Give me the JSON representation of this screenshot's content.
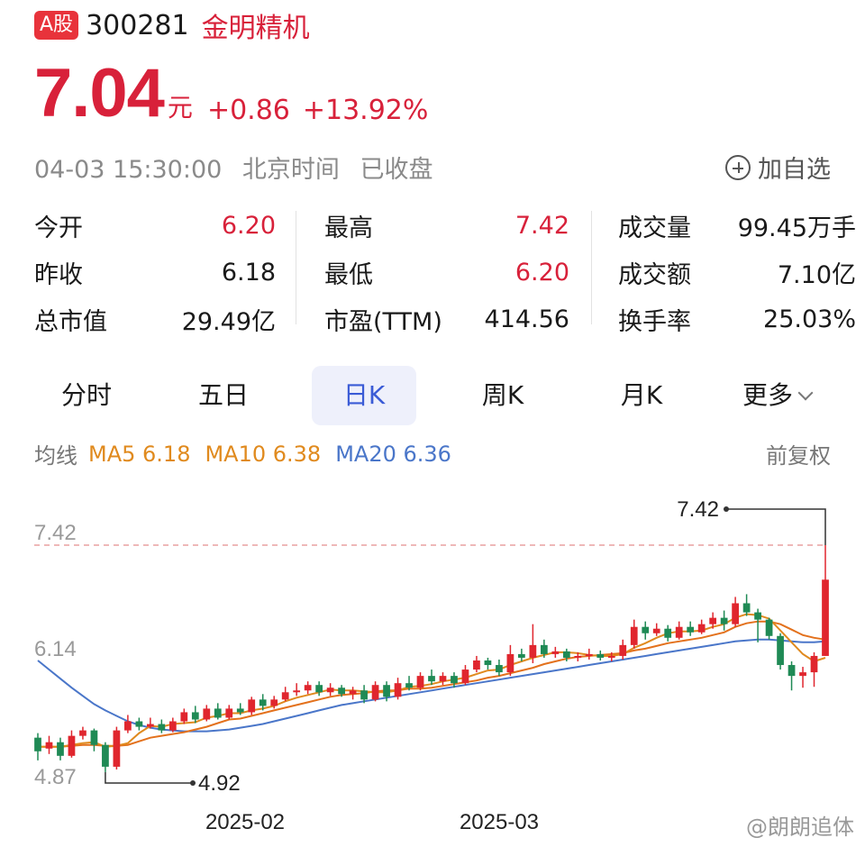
{
  "header": {
    "market_badge": "A股",
    "code": "300281",
    "name": "金明精机"
  },
  "quote": {
    "price": "7.04",
    "unit": "元",
    "change": "+0.86",
    "change_pct": "+13.92%"
  },
  "status": {
    "datetime": "04-03 15:30:00",
    "timezone": "北京时间",
    "state": "已收盘",
    "watch_label": "加自选"
  },
  "stats": {
    "col1": [
      {
        "label": "今开",
        "value": "6.20",
        "color": "red"
      },
      {
        "label": "昨收",
        "value": "6.18",
        "color": "black"
      },
      {
        "label": "总市值",
        "value": "29.49亿",
        "color": "black"
      }
    ],
    "col2": [
      {
        "label": "最高",
        "value": "7.42",
        "color": "red"
      },
      {
        "label": "最低",
        "value": "6.20",
        "color": "red"
      },
      {
        "label": "市盈(TTM)",
        "value": "414.56",
        "color": "black"
      }
    ],
    "col3": [
      {
        "label": "成交量",
        "value": "99.45万手",
        "color": "black"
      },
      {
        "label": "成交额",
        "value": "7.10亿",
        "color": "black"
      },
      {
        "label": "换手率",
        "value": "25.03%",
        "color": "black"
      }
    ]
  },
  "tabs": [
    "分时",
    "五日",
    "日K",
    "周K",
    "月K",
    "更多"
  ],
  "active_tab": "日K",
  "ma": {
    "label": "均线",
    "ma5": "MA5 6.18",
    "ma10": "MA10 6.38",
    "ma20": "MA20 6.36",
    "adjust": "前复权"
  },
  "chart_data": {
    "type": "candlestick",
    "y_ticks": [
      "7.42",
      "6.14",
      "4.87"
    ],
    "y_range": [
      4.87,
      7.42
    ],
    "x_ticks": [
      "2025-02",
      "2025-03"
    ],
    "high_marker": "7.42",
    "low_marker": "4.92",
    "dashed_line_value": 7.42,
    "colors": {
      "up": "#e0262e",
      "down": "#1f8a55",
      "ma5": "#e08a1e",
      "ma10": "#e3711c",
      "ma20": "#4a76c9"
    },
    "candles": [
      [
        5.3,
        5.15,
        5.35,
        5.05
      ],
      [
        5.18,
        5.25,
        5.32,
        5.12
      ],
      [
        5.25,
        5.1,
        5.3,
        5.05
      ],
      [
        5.1,
        5.32,
        5.38,
        5.08
      ],
      [
        5.32,
        5.38,
        5.42,
        5.28
      ],
      [
        5.38,
        5.22,
        5.4,
        5.15
      ],
      [
        5.22,
        4.98,
        5.25,
        4.92
      ],
      [
        4.98,
        5.38,
        5.42,
        4.95
      ],
      [
        5.38,
        5.48,
        5.55,
        5.35
      ],
      [
        5.48,
        5.42,
        5.52,
        5.38
      ],
      [
        5.42,
        5.45,
        5.52,
        5.4
      ],
      [
        5.45,
        5.38,
        5.5,
        5.35
      ],
      [
        5.38,
        5.48,
        5.52,
        5.36
      ],
      [
        5.48,
        5.58,
        5.62,
        5.45
      ],
      [
        5.58,
        5.5,
        5.65,
        5.46
      ],
      [
        5.5,
        5.62,
        5.66,
        5.48
      ],
      [
        5.62,
        5.52,
        5.68,
        5.5
      ],
      [
        5.52,
        5.62,
        5.66,
        5.5
      ],
      [
        5.62,
        5.58,
        5.68,
        5.55
      ],
      [
        5.58,
        5.72,
        5.75,
        5.55
      ],
      [
        5.72,
        5.65,
        5.78,
        5.6
      ],
      [
        5.65,
        5.72,
        5.76,
        5.62
      ],
      [
        5.72,
        5.8,
        5.86,
        5.7
      ],
      [
        5.8,
        5.82,
        5.9,
        5.76
      ],
      [
        5.82,
        5.88,
        5.92,
        5.78
      ],
      [
        5.88,
        5.8,
        5.92,
        5.76
      ],
      [
        5.8,
        5.85,
        5.9,
        5.76
      ],
      [
        5.85,
        5.78,
        5.88,
        5.75
      ],
      [
        5.78,
        5.82,
        5.86,
        5.72
      ],
      [
        5.82,
        5.72,
        5.88,
        5.68
      ],
      [
        5.72,
        5.88,
        5.92,
        5.7
      ],
      [
        5.88,
        5.75,
        5.92,
        5.7
      ],
      [
        5.75,
        5.9,
        5.96,
        5.72
      ],
      [
        5.9,
        5.85,
        5.98,
        5.82
      ],
      [
        5.85,
        5.98,
        6.02,
        5.82
      ],
      [
        5.98,
        5.92,
        6.05,
        5.88
      ],
      [
        5.92,
        5.98,
        6.02,
        5.88
      ],
      [
        5.98,
        5.9,
        6.02,
        5.85
      ],
      [
        5.9,
        6.05,
        6.1,
        5.88
      ],
      [
        6.05,
        6.15,
        6.2,
        6.02
      ],
      [
        6.15,
        6.1,
        6.18,
        6.05
      ],
      [
        6.1,
        6.02,
        6.16,
        5.98
      ],
      [
        6.02,
        6.22,
        6.32,
        5.98
      ],
      [
        6.22,
        6.18,
        6.28,
        6.14
      ],
      [
        6.18,
        6.32,
        6.55,
        6.12
      ],
      [
        6.32,
        6.22,
        6.38,
        6.18
      ],
      [
        6.22,
        6.25,
        6.3,
        6.18
      ],
      [
        6.25,
        6.18,
        6.28,
        6.14
      ],
      [
        6.18,
        6.2,
        6.24,
        6.14
      ],
      [
        6.2,
        6.22,
        6.28,
        6.16
      ],
      [
        6.22,
        6.18,
        6.26,
        6.15
      ],
      [
        6.18,
        6.2,
        6.24,
        6.14
      ],
      [
        6.2,
        6.32,
        6.38,
        6.16
      ],
      [
        6.32,
        6.52,
        6.6,
        6.28
      ],
      [
        6.52,
        6.45,
        6.58,
        6.38
      ],
      [
        6.45,
        6.5,
        6.56,
        6.42
      ],
      [
        6.5,
        6.4,
        6.54,
        6.36
      ],
      [
        6.4,
        6.52,
        6.58,
        6.38
      ],
      [
        6.52,
        6.46,
        6.58,
        6.42
      ],
      [
        6.46,
        6.55,
        6.6,
        6.44
      ],
      [
        6.55,
        6.62,
        6.68,
        6.5
      ],
      [
        6.62,
        6.55,
        6.7,
        6.48
      ],
      [
        6.55,
        6.78,
        6.85,
        6.52
      ],
      [
        6.78,
        6.68,
        6.88,
        6.64
      ],
      [
        6.68,
        6.6,
        6.72,
        6.35
      ],
      [
        6.6,
        6.42,
        6.62,
        6.38
      ],
      [
        6.42,
        6.1,
        6.45,
        6.05
      ],
      [
        6.1,
        5.98,
        6.14,
        5.82
      ],
      [
        5.98,
        6.02,
        6.08,
        5.85
      ],
      [
        6.02,
        6.2,
        6.24,
        5.86
      ],
      [
        6.2,
        7.04,
        7.42,
        6.2
      ]
    ],
    "ma5": [
      5.2,
      5.2,
      5.2,
      5.22,
      5.24,
      5.25,
      5.2,
      5.21,
      5.24,
      5.35,
      5.43,
      5.42,
      5.45,
      5.46,
      5.47,
      5.52,
      5.54,
      5.57,
      5.57,
      5.6,
      5.62,
      5.65,
      5.7,
      5.74,
      5.77,
      5.8,
      5.83,
      5.82,
      5.82,
      5.81,
      5.8,
      5.8,
      5.82,
      5.86,
      5.87,
      5.89,
      5.92,
      5.94,
      5.96,
      6.0,
      6.04,
      6.05,
      6.1,
      6.14,
      6.18,
      6.21,
      6.24,
      6.24,
      6.23,
      6.21,
      6.2,
      6.2,
      6.22,
      6.29,
      6.34,
      6.4,
      6.45,
      6.47,
      6.47,
      6.48,
      6.52,
      6.55,
      6.62,
      6.66,
      6.65,
      6.61,
      6.48,
      6.35,
      6.22,
      6.14,
      6.18
    ],
    "ma10": [
      5.2,
      5.2,
      5.2,
      5.21,
      5.22,
      5.22,
      5.21,
      5.21,
      5.22,
      5.26,
      5.3,
      5.32,
      5.34,
      5.36,
      5.39,
      5.42,
      5.46,
      5.5,
      5.51,
      5.54,
      5.57,
      5.6,
      5.63,
      5.66,
      5.69,
      5.72,
      5.75,
      5.77,
      5.78,
      5.79,
      5.81,
      5.82,
      5.82,
      5.84,
      5.84,
      5.85,
      5.87,
      5.89,
      5.91,
      5.93,
      5.96,
      5.98,
      6.01,
      6.04,
      6.07,
      6.11,
      6.14,
      6.17,
      6.19,
      6.2,
      6.21,
      6.22,
      6.23,
      6.26,
      6.28,
      6.31,
      6.34,
      6.36,
      6.38,
      6.4,
      6.43,
      6.46,
      6.52,
      6.56,
      6.58,
      6.58,
      6.55,
      6.49,
      6.43,
      6.4,
      6.38
    ],
    "ma20": [
      6.15,
      6.05,
      5.95,
      5.85,
      5.76,
      5.67,
      5.6,
      5.54,
      5.48,
      5.44,
      5.41,
      5.39,
      5.38,
      5.37,
      5.37,
      5.37,
      5.38,
      5.39,
      5.41,
      5.43,
      5.45,
      5.48,
      5.51,
      5.54,
      5.57,
      5.6,
      5.63,
      5.66,
      5.68,
      5.7,
      5.72,
      5.74,
      5.76,
      5.78,
      5.8,
      5.82,
      5.84,
      5.86,
      5.88,
      5.9,
      5.92,
      5.94,
      5.96,
      5.98,
      6.0,
      6.02,
      6.04,
      6.06,
      6.08,
      6.1,
      6.12,
      6.14,
      6.16,
      6.18,
      6.2,
      6.22,
      6.24,
      6.26,
      6.28,
      6.3,
      6.32,
      6.34,
      6.36,
      6.37,
      6.38,
      6.38,
      6.37,
      6.36,
      6.35,
      6.35,
      6.36
    ]
  },
  "watermark": "@朗朗追体"
}
